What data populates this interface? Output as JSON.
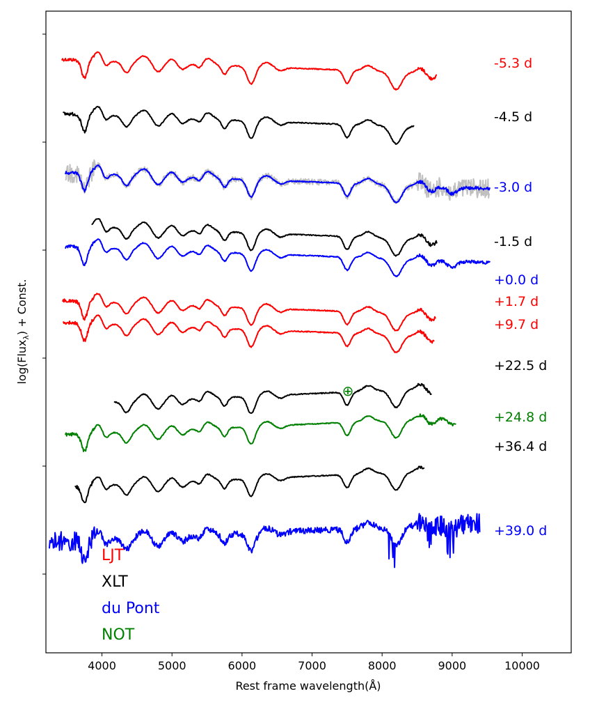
{
  "chart_data": {
    "type": "line",
    "title": "",
    "xlabel": "Rest frame wavelength(Å)",
    "ylabel": "log(Flux",
    "ylabel_sub": "λ",
    "ylabel_suffix": ") + Const.",
    "xlim": [
      3200,
      10700
    ],
    "xticks": [
      "4000",
      "5000",
      "6000",
      "7000",
      "8000",
      "9000",
      "10000"
    ],
    "ytick_count": 6,
    "y_tick_labels_shown": false,
    "grid": false,
    "legend_placement": "lower-left",
    "telluric_marker": {
      "text": "⊕",
      "x": 7520,
      "color": "#008000"
    },
    "legend": [
      {
        "name": "LJT",
        "color": "#ff0000"
      },
      {
        "name": "XLT",
        "color": "#000000"
      },
      {
        "name": "du Pont",
        "color": "#0000ff"
      },
      {
        "name": "NOT",
        "color": "#008000"
      }
    ],
    "series": [
      {
        "name": "-5.3 d",
        "color": "#ff0000",
        "x_range": [
          3430,
          8780
        ],
        "offset": 0.0,
        "raw": false
      },
      {
        "name": "-4.5 d",
        "color": "#000000",
        "x_range": [
          3450,
          8450
        ],
        "offset": 0.5,
        "raw": false
      },
      {
        "name": "-3.0 d",
        "color": "#0000ff",
        "x_range": [
          3480,
          9540
        ],
        "offset": 1.04,
        "raw": true,
        "raw_color": "#c0c0c0"
      },
      {
        "name": "-1.5 d",
        "color": "#000000",
        "x_range": [
          3860,
          8780
        ],
        "offset": 1.53,
        "raw": false
      },
      {
        "name": "+0.0 d",
        "color": "#0000ff",
        "x_range": [
          3480,
          9540
        ],
        "offset": 1.72,
        "raw": false
      },
      {
        "name": "+1.7 d",
        "color": "#ff0000",
        "x_range": [
          3440,
          8760
        ],
        "offset": 2.22,
        "raw": false
      },
      {
        "name": "+9.7 d",
        "color": "#ff0000",
        "x_range": [
          3450,
          8740
        ],
        "offset": 2.42,
        "raw": false
      },
      {
        "name": "+22.5 d",
        "color": "#000000",
        "x_range": [
          4180,
          8700
        ],
        "offset": 3.04,
        "raw": false
      },
      {
        "name": "+24.8 d",
        "color": "#008000",
        "x_range": [
          3480,
          9050
        ],
        "offset": 3.32,
        "raw": false
      },
      {
        "name": "+36.4 d",
        "color": "#000000",
        "x_range": [
          3620,
          8600
        ],
        "offset": 3.8,
        "raw": false
      },
      {
        "name": "+39.0 d",
        "color": "#0000ff",
        "x_range": [
          3250,
          9400
        ],
        "offset": 4.3,
        "raw": false
      }
    ]
  }
}
